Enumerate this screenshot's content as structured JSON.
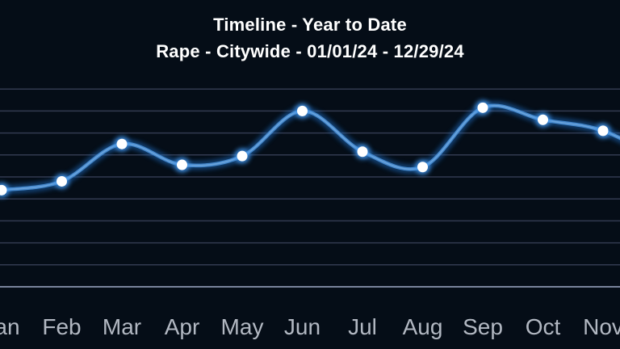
{
  "header": {
    "title": "Timeline - Year to Date",
    "subtitle": "Rape - Citywide - 01/01/24 - 12/29/24"
  },
  "chart_data": {
    "type": "line",
    "title": "Timeline - Year to Date",
    "subtitle": "Rape - Citywide - 01/01/24 - 12/29/24",
    "categories": [
      "Jan",
      "Feb",
      "Mar",
      "Apr",
      "May",
      "Jun",
      "Jul",
      "Aug",
      "Sep",
      "Oct",
      "Nov"
    ],
    "values": [
      44,
      48,
      65,
      55.5,
      59.5,
      80,
      61.5,
      54.5,
      81.5,
      76,
      71
    ],
    "offscreen_right_value": 57,
    "xlabel": "",
    "ylabel": "",
    "ylim": [
      0,
      100
    ],
    "y_axis_tick_labels_visible": false,
    "grid": {
      "horizontal": true,
      "from": 10,
      "to": 90,
      "step": 10
    },
    "legend": "none",
    "marker": "circle"
  },
  "colors": {
    "background": "#050d17",
    "gridline": "#323a50",
    "axis_line": "#78839a",
    "line": "#4689cd",
    "line_glow": "#1d6bbe",
    "line_highlight": "#7fb2e4",
    "marker_fill": "#ffffff",
    "marker_glow": "#3f93e8",
    "title_text": "#ffffff",
    "axis_label_text": "#b2b8c2"
  }
}
